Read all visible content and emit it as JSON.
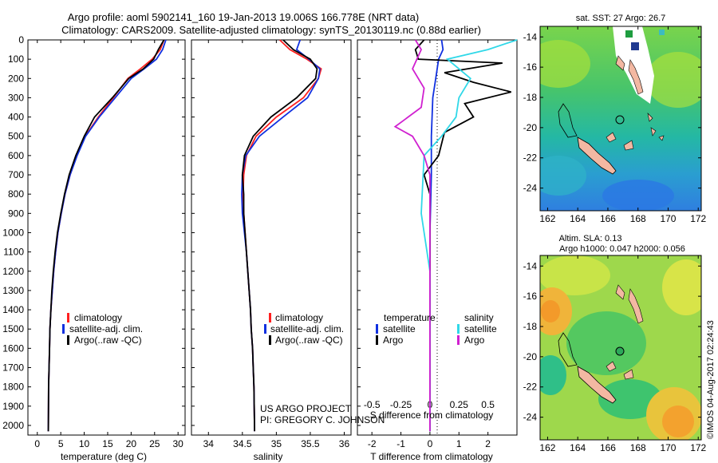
{
  "header": {
    "line1": "Argo profile: aoml 5902141_160 19-Jan-2013 19.006S 166.778E (NRT data)",
    "line2": "Climatology: CARS2009. Satellite-adjusted climatology: synTS_20130119.nc (0.88d earlier)"
  },
  "colors": {
    "climatology": "#ff2020",
    "satellite": "#1030e0",
    "argo": "#000000",
    "s_satellite": "#30d8e8",
    "s_argo": "#d020d0"
  },
  "labels": {
    "project_line1": "US ARGO PROJECT",
    "project_line2": "PI: GREGORY C. JOHNSON",
    "sst_title": "sat. SST: 27 Argo: 26.7",
    "sla_title1": "Altim. SLA: 0.13",
    "sla_title2": "Argo h1000: 0.047 h2000: 0.056",
    "credit": "©IMOS 04-Aug-2017 02:24:43"
  },
  "chart_data": [
    {
      "type": "line",
      "panel": "temperature",
      "xlabel": "temperature (deg C)",
      "ylabel": "",
      "xlim": [
        -2,
        31.5
      ],
      "ylim": [
        2050,
        0
      ],
      "xticks": [
        0,
        5,
        10,
        15,
        20,
        25,
        30
      ],
      "yticks": [
        0,
        100,
        200,
        300,
        400,
        500,
        600,
        700,
        800,
        900,
        1000,
        1100,
        1200,
        1300,
        1400,
        1500,
        1600,
        1700,
        1800,
        1900,
        2000
      ],
      "legend": [
        "climatology",
        "satellite-adj. clim.",
        "Argo(..raw -QC)"
      ],
      "legend_position": "lower-center",
      "series": [
        {
          "name": "climatology",
          "color_key": "climatology",
          "x": [
            27.0,
            26.2,
            24.5,
            22.0,
            19.3,
            16.2,
            13.0,
            10.2,
            8.4,
            7.0,
            5.9,
            5.1,
            4.4,
            3.9,
            3.5,
            3.2,
            2.9,
            2.7,
            2.6,
            2.5,
            2.4,
            2.35
          ],
          "y": [
            0,
            50,
            100,
            150,
            200,
            300,
            400,
            500,
            600,
            700,
            800,
            900,
            1000,
            1100,
            1200,
            1300,
            1400,
            1500,
            1600,
            1700,
            1800,
            2030
          ]
        },
        {
          "name": "satellite-adj. clim.",
          "color_key": "satellite",
          "x": [
            27.4,
            26.7,
            25.4,
            22.8,
            20.0,
            16.6,
            13.2,
            10.3,
            8.5,
            7.0,
            5.9,
            5.1,
            4.4,
            3.9,
            3.5,
            3.2,
            2.9,
            2.7,
            2.6,
            2.5,
            2.4,
            2.35
          ],
          "y": [
            0,
            50,
            100,
            150,
            200,
            300,
            400,
            500,
            600,
            700,
            800,
            900,
            1000,
            1100,
            1200,
            1300,
            1400,
            1500,
            1600,
            1700,
            1800,
            2030
          ]
        },
        {
          "name": "Argo(..raw -QC)",
          "color_key": "argo",
          "x": [
            27.0,
            25.8,
            24.8,
            22.6,
            19.5,
            16.0,
            12.2,
            10.0,
            8.2,
            6.8,
            5.8,
            5.0,
            4.3,
            3.8,
            3.4,
            3.1,
            2.9,
            2.7,
            2.6,
            2.5,
            2.4,
            2.35
          ],
          "y": [
            0,
            50,
            100,
            150,
            200,
            300,
            400,
            500,
            600,
            700,
            800,
            900,
            1000,
            1100,
            1200,
            1300,
            1400,
            1500,
            1600,
            1700,
            1800,
            2030
          ]
        }
      ]
    },
    {
      "type": "line",
      "panel": "salinity",
      "xlabel": "salinity",
      "ylabel": "",
      "xlim": [
        33.75,
        36.1
      ],
      "ylim": [
        2050,
        0
      ],
      "xticks": [
        34,
        34.5,
        35,
        35.5,
        36
      ],
      "xticklabels": [
        "34",
        "34.5",
        "35",
        "35.5",
        "36"
      ],
      "legend": [
        "climatology",
        "satellite-adj. clim.",
        "Argo(..raw -QC)"
      ],
      "legend_position": "lower-center",
      "series": [
        {
          "name": "climatology",
          "color_key": "climatology",
          "x": [
            35.05,
            35.2,
            35.45,
            35.66,
            35.62,
            35.4,
            35.0,
            34.7,
            34.56,
            34.52,
            34.51,
            34.52,
            34.54,
            34.56,
            34.58,
            34.6,
            34.62,
            34.63,
            34.65,
            34.66,
            34.67,
            34.68
          ],
          "y": [
            0,
            50,
            100,
            150,
            200,
            300,
            400,
            500,
            600,
            700,
            800,
            900,
            1000,
            1100,
            1200,
            1300,
            1400,
            1500,
            1600,
            1700,
            1800,
            2030
          ]
        },
        {
          "name": "satellite-adj. clim.",
          "color_key": "satellite",
          "x": [
            35.35,
            35.3,
            35.48,
            35.64,
            35.62,
            35.46,
            35.1,
            34.75,
            34.55,
            34.5,
            34.49,
            34.5,
            34.53,
            34.56,
            34.58,
            34.6,
            34.62,
            34.63,
            34.65,
            34.66,
            34.67,
            34.68
          ],
          "y": [
            0,
            50,
            100,
            150,
            200,
            300,
            400,
            500,
            600,
            700,
            800,
            900,
            1000,
            1100,
            1200,
            1300,
            1400,
            1500,
            1600,
            1700,
            1800,
            2030
          ]
        },
        {
          "name": "Argo(..raw -QC)",
          "color_key": "argo",
          "x": [
            35.1,
            35.25,
            35.5,
            35.6,
            35.58,
            35.3,
            34.92,
            34.66,
            34.53,
            34.5,
            34.52,
            34.52,
            34.54,
            34.56,
            34.58,
            34.6,
            34.62,
            34.63,
            34.65,
            34.66,
            34.67,
            34.68
          ],
          "y": [
            0,
            50,
            100,
            150,
            200,
            300,
            400,
            500,
            600,
            700,
            800,
            900,
            1000,
            1100,
            1200,
            1300,
            1400,
            1500,
            1600,
            1700,
            1800,
            2030
          ]
        }
      ]
    },
    {
      "type": "line",
      "panel": "difference",
      "xlabel": "T difference from climatology",
      "xlabel_top": "S difference from climatology",
      "xlim": [
        -2.5,
        3.0
      ],
      "ylim": [
        2050,
        0
      ],
      "xticks": [
        -2,
        -1,
        0,
        1,
        2
      ],
      "xticklabels_s": [
        "-0.5",
        "-0.25",
        "0",
        "0.25",
        "0.5"
      ],
      "legend_temperature_title": "temperature",
      "legend_salinity_title": "salinity",
      "legend": [
        "satellite",
        "Argo",
        "satellite",
        "Argo"
      ],
      "legend_position": "lower-center",
      "series": [
        {
          "name": "T satellite",
          "color_key": "satellite",
          "x": [
            0.4,
            0.45,
            0.3,
            0.2,
            0.1,
            0.05,
            0.05,
            0.0,
            0.0,
            0.0,
            0.0
          ],
          "y": [
            0,
            50,
            100,
            200,
            300,
            500,
            700,
            1000,
            1400,
            1800,
            2030
          ]
        },
        {
          "name": "T Argo",
          "color_key": "argo",
          "x": [
            -0.2,
            -0.5,
            -0.4,
            2.5,
            0.5,
            1.5,
            2.8,
            1.2,
            1.5,
            0.5,
            0.3,
            -0.2,
            0.0,
            0.0,
            0.0,
            0.0
          ],
          "y": [
            0,
            50,
            100,
            120,
            170,
            220,
            270,
            330,
            400,
            480,
            600,
            700,
            800,
            1000,
            1500,
            2030
          ]
        },
        {
          "name": "S satellite",
          "color_key": "s_satellite",
          "x": [
            3.0,
            2.0,
            0.6,
            1.4,
            1.0,
            0.9,
            0.4,
            -0.2,
            -0.3,
            0.0,
            0.0,
            0.0
          ],
          "y": [
            0,
            50,
            100,
            200,
            300,
            400,
            500,
            600,
            900,
            1200,
            1600,
            2030
          ]
        },
        {
          "name": "S Argo",
          "color_key": "s_argo",
          "x": [
            -0.5,
            -0.3,
            -0.6,
            -0.2,
            -0.3,
            -1.2,
            -0.6,
            -0.2,
            0.0,
            0.0,
            0.0,
            0.0
          ],
          "y": [
            0,
            50,
            150,
            250,
            350,
            450,
            500,
            600,
            700,
            1000,
            1500,
            2030
          ]
        }
      ]
    },
    {
      "type": "heatmap",
      "panel": "sst_map",
      "title": "sat. SST: 27 Argo: 26.7",
      "xticks": [
        162,
        164,
        166,
        168,
        170,
        172
      ],
      "yticks": [
        -14,
        -16,
        -18,
        -20,
        -22,
        -24
      ],
      "xlim": [
        161.5,
        172.2
      ],
      "ylim": [
        -25.5,
        -13.3
      ],
      "float_position": [
        166.778,
        -19.006
      ]
    },
    {
      "type": "heatmap",
      "panel": "sla_map",
      "title": "Altim. SLA: 0.13",
      "subtitle": "Argo h1000: 0.047 h2000: 0.056",
      "xticks": [
        162,
        164,
        166,
        168,
        170,
        172
      ],
      "yticks": [
        -14,
        -16,
        -18,
        -20,
        -22,
        -24
      ],
      "xlim": [
        161.5,
        172.2
      ],
      "ylim": [
        -25.5,
        -13.3
      ],
      "float_position": [
        166.778,
        -19.006
      ]
    }
  ]
}
